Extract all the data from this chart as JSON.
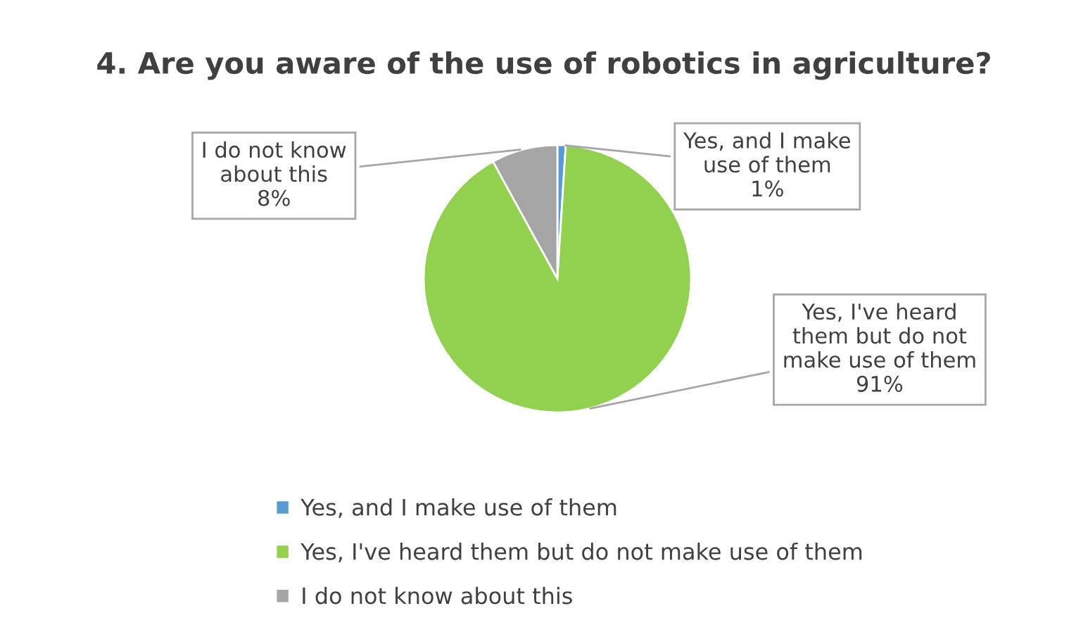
{
  "chart_data": {
    "type": "pie",
    "title": "4. Are you aware of the use of robotics in agriculture?",
    "categories": [
      "Yes, and I make use of them",
      "Yes, I've heard them but do not make use of them",
      "I do not know about this"
    ],
    "values": [
      1,
      91,
      8
    ],
    "colors": [
      "#5b9bd5",
      "#92d050",
      "#a5a5a5"
    ],
    "value_labels": [
      "1%",
      "91%",
      "8%"
    ],
    "legend": "bottom"
  }
}
